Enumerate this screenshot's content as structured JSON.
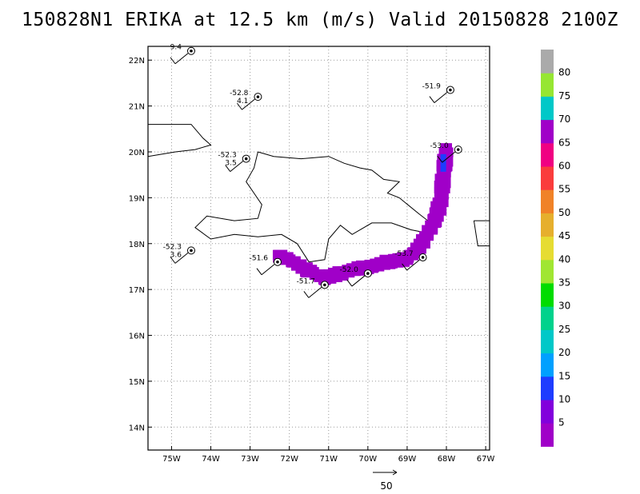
{
  "title": "150828N1 ERIKA at 12.5 km (m/s) Valid 20150828 2100Z",
  "chart_data": {
    "type": "map",
    "xlim": [
      -75.6,
      -66.9
    ],
    "ylim": [
      13.5,
      22.3
    ],
    "x_ticks": [
      {
        "v": -75,
        "label": "75W"
      },
      {
        "v": -74,
        "label": "74W"
      },
      {
        "v": -73,
        "label": "73W"
      },
      {
        "v": -72,
        "label": "72W"
      },
      {
        "v": -71,
        "label": "71W"
      },
      {
        "v": -70,
        "label": "70W"
      },
      {
        "v": -69,
        "label": "69W"
      },
      {
        "v": -68,
        "label": "68W"
      },
      {
        "v": -67,
        "label": "67W"
      }
    ],
    "y_ticks": [
      {
        "v": 14,
        "label": "14N"
      },
      {
        "v": 15,
        "label": "15N"
      },
      {
        "v": 16,
        "label": "16N"
      },
      {
        "v": 17,
        "label": "17N"
      },
      {
        "v": 18,
        "label": "18N"
      },
      {
        "v": 19,
        "label": "19N"
      },
      {
        "v": 20,
        "label": "20N"
      },
      {
        "v": 21,
        "label": "21N"
      },
      {
        "v": 22,
        "label": "22N"
      }
    ],
    "grid": true,
    "colorbar": {
      "labels": [
        "5",
        "10",
        "15",
        "20",
        "25",
        "30",
        "35",
        "40",
        "45",
        "50",
        "55",
        "60",
        "65",
        "70",
        "75",
        "80"
      ],
      "colors": [
        "#a000c8",
        "#8200dc",
        "#1e3cff",
        "#00a0ff",
        "#00c8c8",
        "#00d28c",
        "#00dc00",
        "#a0e632",
        "#e6dc32",
        "#e6af2d",
        "#f08228",
        "#fa3c3c",
        "#f00082",
        "#a000c8",
        "#00c8c8",
        "#96e632",
        "#aaaaaa"
      ]
    },
    "stations": [
      {
        "lon": -74.5,
        "lat": 22.2,
        "labels": [
          "9.4"
        ]
      },
      {
        "lon": -72.8,
        "lat": 21.2,
        "labels": [
          "-52.8",
          "4.1"
        ]
      },
      {
        "lon": -73.1,
        "lat": 19.85,
        "labels": [
          "-52.3",
          "3.5"
        ]
      },
      {
        "lon": -67.9,
        "lat": 21.35,
        "labels": [
          "-51.9"
        ]
      },
      {
        "lon": -67.7,
        "lat": 20.05,
        "labels": [
          "-53.0"
        ]
      },
      {
        "lon": -74.5,
        "lat": 17.85,
        "labels": [
          "-52.3",
          "3.6"
        ]
      },
      {
        "lon": -72.3,
        "lat": 17.6,
        "labels": [
          "-51.6"
        ]
      },
      {
        "lon": -71.1,
        "lat": 17.1,
        "labels": [
          "-51.7"
        ]
      },
      {
        "lon": -70.0,
        "lat": 17.35,
        "labels": [
          "-52.0"
        ]
      },
      {
        "lon": -68.6,
        "lat": 17.7,
        "labels": [
          "-53.7"
        ]
      }
    ],
    "wind_swath": [
      [
        -72.3,
        17.75
      ],
      [
        -71.9,
        17.6
      ],
      [
        -71.5,
        17.4
      ],
      [
        -71.1,
        17.25
      ],
      [
        -70.7,
        17.35
      ],
      [
        -70.3,
        17.45
      ],
      [
        -69.9,
        17.5
      ],
      [
        -69.5,
        17.6
      ],
      [
        -69.1,
        17.65
      ],
      [
        -68.8,
        17.8
      ],
      [
        -68.55,
        18.1
      ],
      [
        -68.3,
        18.5
      ],
      [
        -68.15,
        18.9
      ],
      [
        -68.1,
        19.3
      ],
      [
        -68.05,
        19.7
      ],
      [
        -68.0,
        20.05
      ]
    ],
    "vector_scale_label": "50"
  }
}
